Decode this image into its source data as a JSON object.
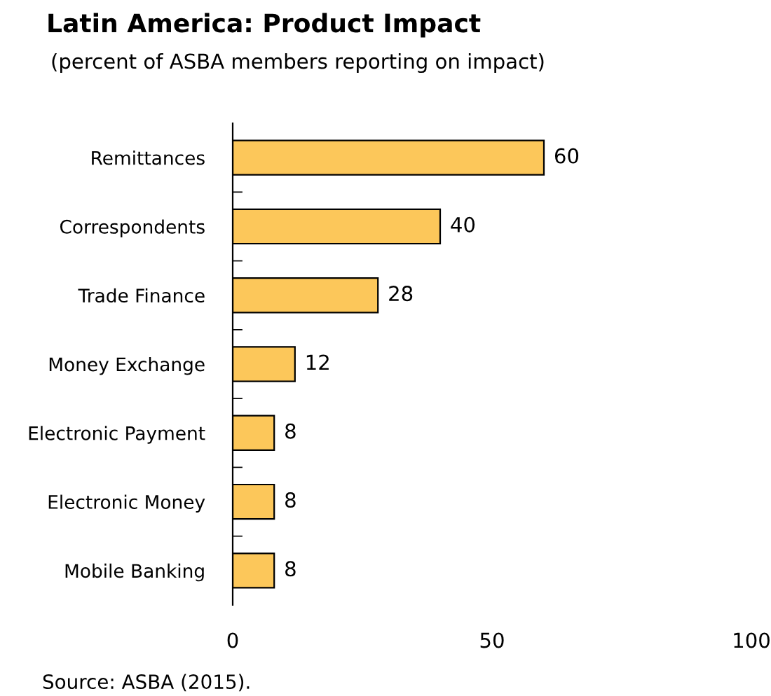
{
  "chart_data": {
    "type": "bar",
    "orientation": "horizontal",
    "title": "Latin America: Product Impact",
    "subtitle": "(percent of ASBA members reporting on impact)",
    "categories": [
      "Remittances",
      "Correspondents",
      "Trade Finance",
      "Money Exchange",
      "Electronic Payment",
      "Electronic Money",
      "Mobile Banking"
    ],
    "values": [
      60,
      40,
      28,
      12,
      8,
      8,
      8
    ],
    "color": "#fcc75a",
    "xlim": [
      0,
      100
    ],
    "xticks": [
      0,
      50,
      100
    ],
    "data_labels": true,
    "grid": false,
    "legend": false,
    "annotations": [
      "Source: ASBA (2015)."
    ]
  }
}
